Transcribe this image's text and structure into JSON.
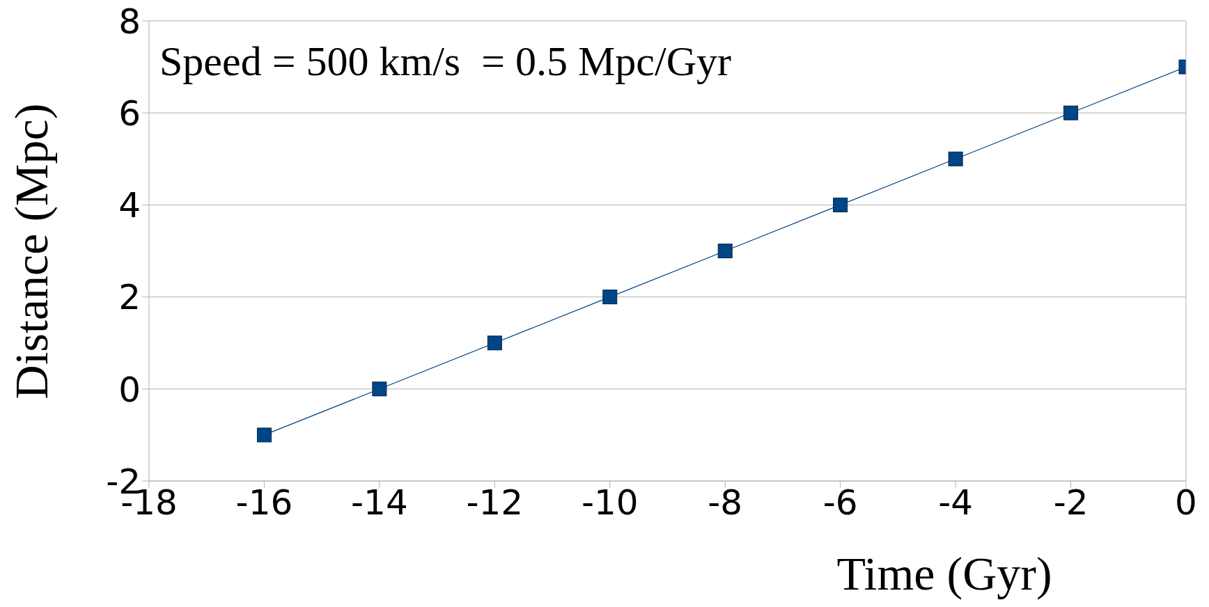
{
  "chart_data": {
    "type": "line",
    "xlabel": "Time (Gyr)",
    "ylabel": "Distance (Mpc)",
    "annotations": [
      "Speed = 500 km/s  = 0.5 Mpc/Gyr"
    ],
    "x": [
      -16,
      -14,
      -12,
      -10,
      -8,
      -6,
      -4,
      -2,
      0
    ],
    "series": [
      {
        "color": "#004586",
        "values": [
          -1,
          0,
          1,
          2,
          3,
          4,
          5,
          6,
          7
        ]
      }
    ],
    "xlim": [
      -18,
      0
    ],
    "xticks": [
      -18,
      -16,
      -14,
      -12,
      -10,
      -8,
      -6,
      -4,
      -2,
      0
    ],
    "ylim": [
      -2,
      8
    ],
    "yticks": [
      -2,
      0,
      2,
      4,
      6,
      8
    ],
    "grid": "y",
    "legend": false,
    "marker": "square",
    "line_style": "solid"
  }
}
